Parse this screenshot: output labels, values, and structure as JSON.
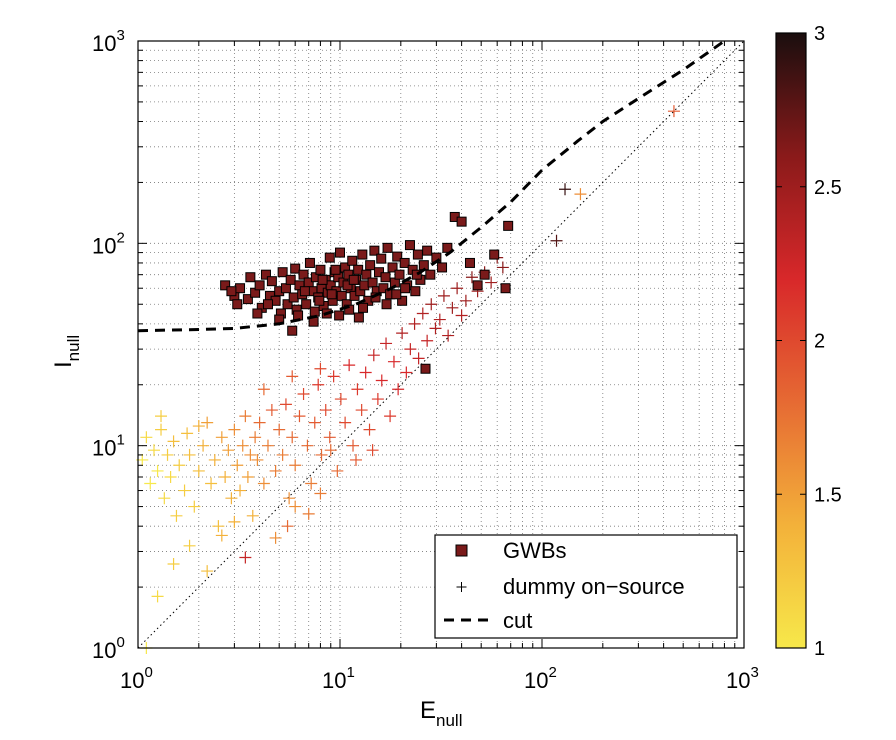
{
  "chart_data": {
    "type": "scatter",
    "title": "",
    "x_scale": "log",
    "y_scale": "log",
    "xlim": [
      1,
      1000
    ],
    "ylim": [
      1,
      1000
    ],
    "grid": true,
    "legend_position": "bottom-right",
    "xlabel": {
      "main": "E",
      "sub": "null"
    },
    "ylabel": {
      "main": "I",
      "sub": "null"
    },
    "x_ticks": [
      {
        "base": "10",
        "exp": "0",
        "value": 1
      },
      {
        "base": "10",
        "exp": "1",
        "value": 10
      },
      {
        "base": "10",
        "exp": "2",
        "value": 100
      },
      {
        "base": "10",
        "exp": "3",
        "value": 1000
      }
    ],
    "y_ticks": [
      {
        "base": "10",
        "exp": "0",
        "value": 1
      },
      {
        "base": "10",
        "exp": "1",
        "value": 10
      },
      {
        "base": "10",
        "exp": "2",
        "value": 100
      },
      {
        "base": "10",
        "exp": "3",
        "value": 1000
      }
    ],
    "colorbar": {
      "range": [
        1,
        3
      ],
      "ticks": [
        "1",
        "1.5",
        "2",
        "2.5",
        "3"
      ],
      "tick_values": [
        1,
        1.5,
        2,
        2.5,
        3
      ],
      "colors": [
        "#f7e84a",
        "#f3b13a",
        "#e66a33",
        "#d8282a",
        "#8a1a1a",
        "#1a0e0e"
      ]
    },
    "legend": [
      {
        "label": "GWBs",
        "marker": "square"
      },
      {
        "label": "dummy on−source",
        "marker": "plus"
      },
      {
        "label": "cut",
        "marker": "dashed-line"
      }
    ],
    "series": [
      {
        "name": "GWBs",
        "marker": "square",
        "color": "#7a1a1a",
        "points": [
          [
            2.7,
            62
          ],
          [
            3.0,
            55
          ],
          [
            3.1,
            50
          ],
          [
            3.2,
            60
          ],
          [
            3.5,
            53
          ],
          [
            3.6,
            68
          ],
          [
            3.8,
            57
          ],
          [
            4.0,
            62
          ],
          [
            4.1,
            48
          ],
          [
            4.3,
            70
          ],
          [
            4.5,
            55
          ],
          [
            4.6,
            65
          ],
          [
            4.8,
            52
          ],
          [
            5.0,
            58
          ],
          [
            5.1,
            45
          ],
          [
            5.2,
            72
          ],
          [
            5.4,
            60
          ],
          [
            5.5,
            50
          ],
          [
            5.7,
            66
          ],
          [
            5.9,
            54
          ],
          [
            6.0,
            75
          ],
          [
            6.1,
            47
          ],
          [
            6.3,
            62
          ],
          [
            6.5,
            56
          ],
          [
            6.6,
            70
          ],
          [
            6.8,
            50
          ],
          [
            7.0,
            64
          ],
          [
            7.1,
            80
          ],
          [
            7.3,
            58
          ],
          [
            7.5,
            46
          ],
          [
            7.6,
            68
          ],
          [
            7.8,
            54
          ],
          [
            8.0,
            74
          ],
          [
            8.1,
            60
          ],
          [
            8.3,
            49
          ],
          [
            8.5,
            66
          ],
          [
            8.7,
            57
          ],
          [
            8.9,
            85
          ],
          [
            9.0,
            62
          ],
          [
            9.2,
            52
          ],
          [
            9.4,
            72
          ],
          [
            9.6,
            58
          ],
          [
            9.8,
            68
          ],
          [
            10.0,
            90
          ],
          [
            10.2,
            55
          ],
          [
            10.4,
            64
          ],
          [
            10.6,
            76
          ],
          [
            10.8,
            50
          ],
          [
            11.0,
            70
          ],
          [
            11.3,
            60
          ],
          [
            11.5,
            82
          ],
          [
            11.8,
            55
          ],
          [
            12.0,
            66
          ],
          [
            12.3,
            74
          ],
          [
            12.6,
            58
          ],
          [
            12.9,
            88
          ],
          [
            13.2,
            62
          ],
          [
            13.5,
            70
          ],
          [
            13.8,
            52
          ],
          [
            14.1,
            78
          ],
          [
            14.5,
            64
          ],
          [
            14.8,
            92
          ],
          [
            15.2,
            58
          ],
          [
            15.6,
            72
          ],
          [
            16.0,
            84
          ],
          [
            16.4,
            60
          ],
          [
            16.8,
            68
          ],
          [
            17.2,
            95
          ],
          [
            17.7,
            56
          ],
          [
            18.2,
            76
          ],
          [
            18.7,
            64
          ],
          [
            19.2,
            86
          ],
          [
            19.7,
            70
          ],
          [
            20.3,
            52
          ],
          [
            20.9,
            80
          ],
          [
            21.5,
            62
          ],
          [
            22.2,
            98
          ],
          [
            22.9,
            74
          ],
          [
            23.6,
            58
          ],
          [
            24.3,
            88
          ],
          [
            25.0,
            66
          ],
          [
            26.0,
            78
          ],
          [
            27.0,
            92
          ],
          [
            28.0,
            70
          ],
          [
            30.0,
            85
          ],
          [
            32.0,
            76
          ],
          [
            34.0,
            95
          ],
          [
            37.0,
            135
          ],
          [
            40.0,
            128
          ],
          [
            44.0,
            80
          ],
          [
            48.0,
            62
          ],
          [
            52.0,
            70
          ],
          [
            58.0,
            88
          ],
          [
            66.0,
            60
          ],
          [
            68.0,
            122
          ],
          [
            5.0,
            42
          ],
          [
            6.2,
            44
          ],
          [
            7.4,
            41
          ],
          [
            8.6,
            45
          ],
          [
            9.9,
            44
          ],
          [
            11.1,
            47
          ],
          [
            12.4,
            43
          ],
          [
            4.4,
            50
          ],
          [
            3.9,
            45
          ],
          [
            2.9,
            58
          ],
          [
            5.8,
            37
          ],
          [
            26.5,
            24
          ],
          [
            7.9,
            52
          ],
          [
            9.1,
            56
          ],
          [
            10.9,
            62
          ],
          [
            13.0,
            48
          ],
          [
            15.0,
            54
          ],
          [
            17.0,
            50
          ],
          [
            19.0,
            56
          ],
          [
            21.0,
            60
          ],
          [
            24.0,
            70
          ],
          [
            6.7,
            58
          ],
          [
            8.2,
            66
          ],
          [
            9.5,
            74
          ],
          [
            11.7,
            66
          ]
        ]
      },
      {
        "name": "dummy on−source",
        "marker": "plus",
        "points": [
          [
            1.05,
            8.5,
            1.0
          ],
          [
            1.1,
            11,
            1.1
          ],
          [
            1.15,
            6.5,
            1.0
          ],
          [
            1.2,
            9.5,
            1.1
          ],
          [
            1.25,
            7.5,
            1.0
          ],
          [
            1.3,
            12,
            1.2
          ],
          [
            1.35,
            5.5,
            1.1
          ],
          [
            1.4,
            9,
            1.2
          ],
          [
            1.45,
            7,
            1.1
          ],
          [
            1.5,
            10.5,
            1.3
          ],
          [
            1.55,
            4.5,
            1.2
          ],
          [
            1.6,
            8,
            1.2
          ],
          [
            1.7,
            6,
            1.2
          ],
          [
            1.75,
            11.5,
            1.3
          ],
          [
            1.8,
            9,
            1.3
          ],
          [
            1.9,
            5,
            1.2
          ],
          [
            2.0,
            7.5,
            1.3
          ],
          [
            2.1,
            10,
            1.4
          ],
          [
            2.2,
            13,
            1.5
          ],
          [
            2.3,
            6.5,
            1.3
          ],
          [
            2.4,
            8.5,
            1.4
          ],
          [
            2.5,
            4,
            1.3
          ],
          [
            2.6,
            11,
            1.5
          ],
          [
            2.7,
            7,
            1.4
          ],
          [
            2.8,
            9.5,
            1.5
          ],
          [
            2.9,
            5.5,
            1.4
          ],
          [
            3.0,
            12,
            1.6
          ],
          [
            3.1,
            8,
            1.5
          ],
          [
            3.2,
            6,
            1.4
          ],
          [
            3.3,
            10,
            1.6
          ],
          [
            3.4,
            14,
            1.7
          ],
          [
            3.5,
            7,
            1.5
          ],
          [
            3.6,
            9,
            1.6
          ],
          [
            3.7,
            4.5,
            1.4
          ],
          [
            3.8,
            11,
            1.7
          ],
          [
            3.9,
            8.5,
            1.6
          ],
          [
            4.0,
            13,
            1.8
          ],
          [
            4.2,
            6.5,
            1.6
          ],
          [
            4.4,
            10,
            1.7
          ],
          [
            4.6,
            15,
            1.9
          ],
          [
            4.8,
            7.5,
            1.7
          ],
          [
            5.0,
            12,
            1.8
          ],
          [
            5.2,
            9,
            1.7
          ],
          [
            5.4,
            16,
            2.0
          ],
          [
            5.6,
            5.5,
            1.6
          ],
          [
            5.8,
            11,
            1.8
          ],
          [
            6.0,
            8,
            1.7
          ],
          [
            6.3,
            14,
            1.9
          ],
          [
            6.6,
            18,
            2.0
          ],
          [
            6.9,
            10,
            1.8
          ],
          [
            7.2,
            6.5,
            1.7
          ],
          [
            7.5,
            13,
            1.9
          ],
          [
            7.8,
            20,
            2.1
          ],
          [
            8.1,
            9,
            1.8
          ],
          [
            8.5,
            15,
            2.0
          ],
          [
            8.9,
            11,
            1.9
          ],
          [
            9.3,
            22,
            2.1
          ],
          [
            9.7,
            7.5,
            1.8
          ],
          [
            10.1,
            17,
            2.0
          ],
          [
            10.6,
            13,
            2.0
          ],
          [
            11.1,
            25,
            2.2
          ],
          [
            11.6,
            10,
            1.9
          ],
          [
            12.2,
            19,
            2.1
          ],
          [
            12.8,
            15,
            2.0
          ],
          [
            13.4,
            23,
            2.2
          ],
          [
            14.0,
            12,
            2.0
          ],
          [
            14.7,
            28,
            2.3
          ],
          [
            15.4,
            17,
            2.1
          ],
          [
            16.1,
            21,
            2.2
          ],
          [
            16.9,
            32,
            2.3
          ],
          [
            17.7,
            14,
            2.1
          ],
          [
            18.5,
            26,
            2.2
          ],
          [
            19.4,
            19,
            2.2
          ],
          [
            20.3,
            36,
            2.4
          ],
          [
            21.3,
            23,
            2.2
          ],
          [
            22.3,
            30,
            2.3
          ],
          [
            23.4,
            40,
            2.4
          ],
          [
            24.5,
            27,
            2.3
          ],
          [
            25.7,
            45,
            2.4
          ],
          [
            27.0,
            33,
            2.3
          ],
          [
            28.3,
            50,
            2.5
          ],
          [
            29.7,
            38,
            2.4
          ],
          [
            31.2,
            42,
            2.4
          ],
          [
            32.7,
            55,
            2.5
          ],
          [
            34.3,
            35,
            2.4
          ],
          [
            36.0,
            48,
            2.5
          ],
          [
            38.0,
            60,
            2.5
          ],
          [
            40.0,
            44,
            2.4
          ],
          [
            42.0,
            52,
            2.5
          ],
          [
            45.0,
            68,
            2.6
          ],
          [
            48.0,
            58,
            2.5
          ],
          [
            52.0,
            72,
            2.6
          ],
          [
            56.0,
            64,
            2.5
          ],
          [
            60.0,
            85,
            2.6
          ],
          [
            64.0,
            76,
            2.6
          ],
          [
            118.0,
            103,
            2.8
          ],
          [
            130.0,
            185,
            2.9
          ],
          [
            155.0,
            175,
            1.6
          ],
          [
            450.0,
            450,
            1.9
          ],
          [
            1.25,
            1.8,
            1.1
          ],
          [
            1.5,
            2.6,
            1.2
          ],
          [
            1.8,
            3.2,
            1.2
          ],
          [
            2.2,
            2.4,
            1.3
          ],
          [
            2.6,
            3.6,
            1.4
          ],
          [
            3.0,
            4.2,
            1.4
          ],
          [
            1.1,
            1.0,
            1.0
          ],
          [
            4.8,
            3.5,
            1.6
          ],
          [
            6.0,
            5.0,
            1.6
          ],
          [
            7.0,
            4.6,
            1.7
          ],
          [
            8.0,
            5.8,
            1.7
          ],
          [
            3.4,
            2.8,
            2.3
          ],
          [
            5.5,
            4.0,
            1.8
          ],
          [
            2.0,
            12.5,
            1.4
          ],
          [
            1.3,
            14,
            1.2
          ],
          [
            9.0,
            9.5,
            1.8
          ],
          [
            12.0,
            8.5,
            1.9
          ],
          [
            14.5,
            9.5,
            2.0
          ],
          [
            4.2,
            19,
            1.8
          ],
          [
            5.8,
            22,
            1.9
          ],
          [
            8.0,
            24,
            2.0
          ]
        ]
      },
      {
        "name": "cut",
        "marker": "dashed-line",
        "color": "#000000",
        "points": [
          [
            1,
            37
          ],
          [
            2,
            37.5
          ],
          [
            3,
            38
          ],
          [
            5,
            40
          ],
          [
            8,
            44
          ],
          [
            12,
            50
          ],
          [
            18,
            60
          ],
          [
            25,
            72
          ],
          [
            35,
            90
          ],
          [
            50,
            120
          ],
          [
            70,
            160
          ],
          [
            100,
            230
          ],
          [
            150,
            320
          ],
          [
            200,
            400
          ],
          [
            300,
            520
          ],
          [
            500,
            720
          ],
          [
            800,
            1000
          ]
        ]
      }
    ]
  }
}
